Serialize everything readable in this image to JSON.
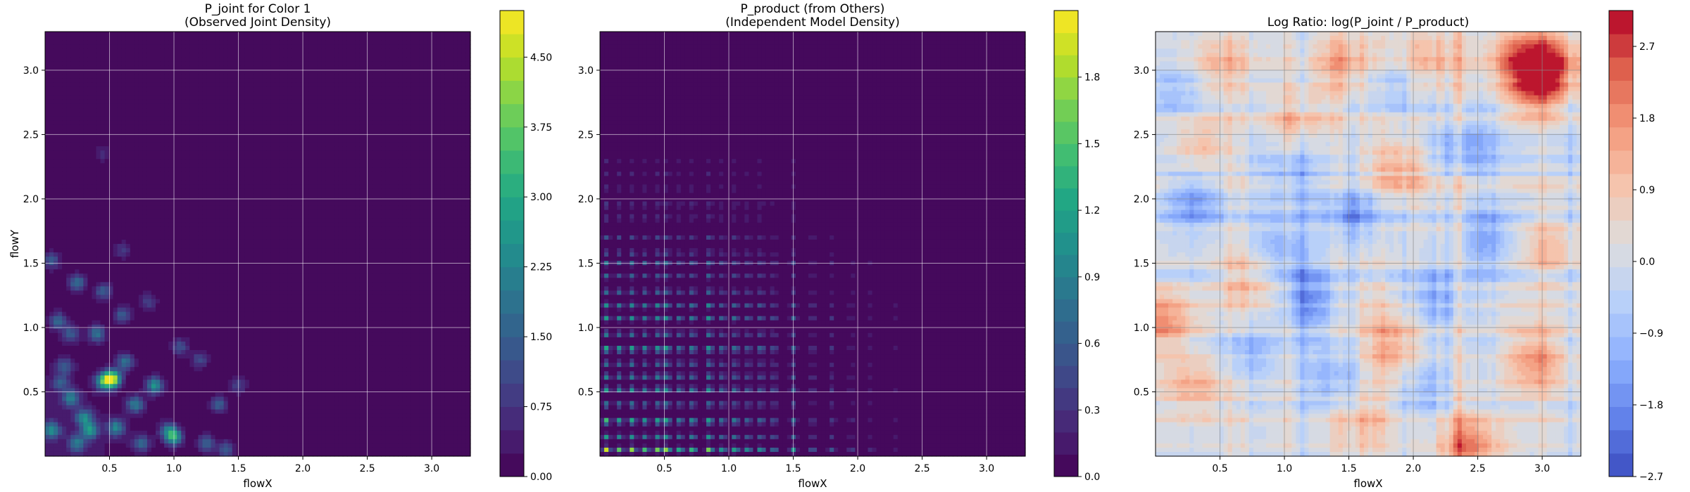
{
  "chart_data": [
    {
      "type": "heatmap",
      "title": "P_joint for Color 1",
      "subtitle": "(Observed Joint Density)",
      "xlabel": "flowX",
      "ylabel": "flowY",
      "xlim": [
        0.0,
        3.3
      ],
      "ylim": [
        0.0,
        3.3
      ],
      "xticks": [
        "0.5",
        "1.0",
        "1.5",
        "2.0",
        "2.5",
        "3.0"
      ],
      "yticks": [
        "0.5",
        "1.0",
        "1.5",
        "2.0",
        "2.5",
        "3.0"
      ],
      "colormap": "viridis",
      "colorbar": {
        "range": [
          0.0,
          5.0
        ],
        "ticks": [
          "0.00",
          "0.75",
          "1.50",
          "2.25",
          "3.00",
          "3.75",
          "4.50"
        ]
      },
      "grid": true,
      "hotspots": [
        {
          "x": 0.05,
          "y": 1.52,
          "z": 1.4
        },
        {
          "x": 0.1,
          "y": 1.05,
          "z": 1.6
        },
        {
          "x": 0.12,
          "y": 0.57,
          "z": 1.3
        },
        {
          "x": 0.2,
          "y": 0.45,
          "z": 2.0
        },
        {
          "x": 0.05,
          "y": 0.2,
          "z": 2.2
        },
        {
          "x": 0.25,
          "y": 0.1,
          "z": 1.8
        },
        {
          "x": 0.35,
          "y": 0.2,
          "z": 2.4
        },
        {
          "x": 0.45,
          "y": 0.58,
          "z": 2.6
        },
        {
          "x": 0.52,
          "y": 0.6,
          "z": 4.8
        },
        {
          "x": 0.55,
          "y": 0.22,
          "z": 2.2
        },
        {
          "x": 0.62,
          "y": 0.73,
          "z": 1.8
        },
        {
          "x": 0.7,
          "y": 0.4,
          "z": 2.0
        },
        {
          "x": 0.85,
          "y": 0.55,
          "z": 2.5
        },
        {
          "x": 0.95,
          "y": 0.2,
          "z": 1.6
        },
        {
          "x": 1.0,
          "y": 0.15,
          "z": 3.0
        },
        {
          "x": 0.4,
          "y": 0.95,
          "z": 1.9
        },
        {
          "x": 0.25,
          "y": 1.35,
          "z": 1.8
        },
        {
          "x": 0.45,
          "y": 1.28,
          "z": 1.5
        },
        {
          "x": 0.2,
          "y": 0.95,
          "z": 1.4
        },
        {
          "x": 0.6,
          "y": 1.1,
          "z": 1.4
        },
        {
          "x": 1.05,
          "y": 0.85,
          "z": 1.2
        },
        {
          "x": 1.2,
          "y": 0.75,
          "z": 1.1
        },
        {
          "x": 1.35,
          "y": 0.4,
          "z": 1.5
        },
        {
          "x": 1.5,
          "y": 0.55,
          "z": 1.0
        },
        {
          "x": 0.8,
          "y": 1.2,
          "z": 1.0
        },
        {
          "x": 0.3,
          "y": 0.3,
          "z": 2.2
        },
        {
          "x": 0.15,
          "y": 0.7,
          "z": 1.3
        },
        {
          "x": 0.75,
          "y": 0.1,
          "z": 1.5
        },
        {
          "x": 1.25,
          "y": 0.1,
          "z": 1.6
        },
        {
          "x": 0.45,
          "y": 2.35,
          "z": 0.6
        },
        {
          "x": 0.6,
          "y": 1.6,
          "z": 0.8
        },
        {
          "x": 1.4,
          "y": 0.05,
          "z": 1.4
        }
      ]
    },
    {
      "type": "heatmap",
      "title": "P_product (from Others)",
      "subtitle": "(Independent Model Density)",
      "xlabel": "flowX",
      "ylabel": "",
      "xlim": [
        0.0,
        3.3
      ],
      "ylim": [
        0.0,
        3.3
      ],
      "xticks": [
        "0.5",
        "1.0",
        "1.5",
        "2.0",
        "2.5",
        "3.0"
      ],
      "yticks": [
        "0.5",
        "1.0",
        "1.5",
        "2.0",
        "2.5",
        "3.0"
      ],
      "colormap": "viridis",
      "colorbar": {
        "range": [
          0.0,
          2.1
        ],
        "ticks": [
          "0.0",
          "0.3",
          "0.6",
          "0.9",
          "1.2",
          "1.5",
          "1.8"
        ]
      },
      "grid": true,
      "x_marginal_peaks": [
        {
          "pos": 0.05,
          "w": 1.0
        },
        {
          "pos": 0.15,
          "w": 0.8
        },
        {
          "pos": 0.25,
          "w": 0.9
        },
        {
          "pos": 0.35,
          "w": 0.75
        },
        {
          "pos": 0.45,
          "w": 0.85
        },
        {
          "pos": 0.52,
          "w": 1.0
        },
        {
          "pos": 0.62,
          "w": 0.7
        },
        {
          "pos": 0.72,
          "w": 0.8
        },
        {
          "pos": 0.85,
          "w": 0.95
        },
        {
          "pos": 0.95,
          "w": 0.6
        },
        {
          "pos": 1.05,
          "w": 0.7
        },
        {
          "pos": 1.15,
          "w": 0.55
        },
        {
          "pos": 1.25,
          "w": 0.6
        },
        {
          "pos": 1.35,
          "w": 0.45
        },
        {
          "pos": 1.5,
          "w": 0.5
        },
        {
          "pos": 1.65,
          "w": 0.3
        },
        {
          "pos": 1.8,
          "w": 0.25
        },
        {
          "pos": 1.95,
          "w": 0.18
        },
        {
          "pos": 2.1,
          "w": 0.12
        },
        {
          "pos": 2.3,
          "w": 0.08
        }
      ],
      "y_marginal_peaks": [
        {
          "pos": 0.05,
          "w": 1.0
        },
        {
          "pos": 0.15,
          "w": 0.6
        },
        {
          "pos": 0.27,
          "w": 0.9
        },
        {
          "pos": 0.4,
          "w": 0.55
        },
        {
          "pos": 0.52,
          "w": 0.7
        },
        {
          "pos": 0.62,
          "w": 0.6
        },
        {
          "pos": 0.72,
          "w": 0.5
        },
        {
          "pos": 0.83,
          "w": 0.85
        },
        {
          "pos": 0.95,
          "w": 0.5
        },
        {
          "pos": 1.07,
          "w": 0.6
        },
        {
          "pos": 1.17,
          "w": 0.55
        },
        {
          "pos": 1.28,
          "w": 0.45
        },
        {
          "pos": 1.4,
          "w": 0.35
        },
        {
          "pos": 1.5,
          "w": 0.4
        },
        {
          "pos": 1.58,
          "w": 0.3
        },
        {
          "pos": 1.7,
          "w": 0.25
        },
        {
          "pos": 1.85,
          "w": 0.2
        },
        {
          "pos": 1.95,
          "w": 0.22
        },
        {
          "pos": 2.08,
          "w": 0.15
        },
        {
          "pos": 2.2,
          "w": 0.12
        },
        {
          "pos": 2.3,
          "w": 0.1
        }
      ]
    },
    {
      "type": "heatmap",
      "title": "Log Ratio: log(P_joint / P_product)",
      "xlabel": "flowX",
      "ylabel": "",
      "xlim": [
        0.0,
        3.3
      ],
      "ylim": [
        0.0,
        3.3
      ],
      "xticks": [
        "0.5",
        "1.0",
        "1.5",
        "2.0",
        "2.5",
        "3.0"
      ],
      "yticks": [
        "0.5",
        "1.0",
        "1.5",
        "2.0",
        "2.5",
        "3.0"
      ],
      "colormap": "coolwarm",
      "colorbar": {
        "range": [
          -2.7,
          3.15
        ],
        "ticks": [
          "−2.7",
          "−1.8",
          "−0.9",
          "0.0",
          "0.9",
          "1.8",
          "2.7"
        ]
      },
      "grid": true,
      "warm_regions": [
        {
          "x": 3.05,
          "y": 3.05,
          "z": 2.4
        },
        {
          "x": 2.95,
          "y": 2.85,
          "z": 1.8
        },
        {
          "x": 2.8,
          "y": 3.1,
          "z": 1.6
        },
        {
          "x": 1.9,
          "y": 2.25,
          "z": 1.4
        },
        {
          "x": 0.35,
          "y": 2.4,
          "z": 1.3
        },
        {
          "x": 1.1,
          "y": 2.6,
          "z": 1.1
        },
        {
          "x": 1.85,
          "y": 0.85,
          "z": 1.5
        },
        {
          "x": 2.95,
          "y": 0.75,
          "z": 1.6
        },
        {
          "x": 2.45,
          "y": 0.08,
          "z": 2.0
        },
        {
          "x": 0.75,
          "y": 1.4,
          "z": 1.3
        },
        {
          "x": 0.05,
          "y": 1.05,
          "z": 1.6
        },
        {
          "x": 0.3,
          "y": 0.55,
          "z": 1.2
        },
        {
          "x": 1.45,
          "y": 3.05,
          "z": 1.2
        },
        {
          "x": 2.1,
          "y": 3.1,
          "z": 1.1
        },
        {
          "x": 3.05,
          "y": 1.6,
          "z": 1.0
        },
        {
          "x": 1.6,
          "y": 0.3,
          "z": 0.9
        },
        {
          "x": 0.5,
          "y": 3.05,
          "z": 1.0
        }
      ],
      "cool_regions": [
        {
          "x": 1.2,
          "y": 1.2,
          "z": -1.8
        },
        {
          "x": 1.55,
          "y": 1.9,
          "z": -1.6
        },
        {
          "x": 0.95,
          "y": 1.6,
          "z": -1.3
        },
        {
          "x": 2.2,
          "y": 1.2,
          "z": -1.4
        },
        {
          "x": 0.3,
          "y": 2.0,
          "z": -1.5
        },
        {
          "x": 2.4,
          "y": 2.4,
          "z": -1.2
        },
        {
          "x": 1.4,
          "y": 0.6,
          "z": -1.4
        },
        {
          "x": 2.1,
          "y": 0.55,
          "z": -1.1
        },
        {
          "x": 0.7,
          "y": 0.8,
          "z": -1.0
        },
        {
          "x": 2.55,
          "y": 1.7,
          "z": -1.2
        },
        {
          "x": 0.15,
          "y": 2.85,
          "z": -0.9
        },
        {
          "x": 1.8,
          "y": 2.9,
          "z": -0.9
        },
        {
          "x": 1.05,
          "y": 2.15,
          "z": -1.0
        }
      ]
    }
  ]
}
